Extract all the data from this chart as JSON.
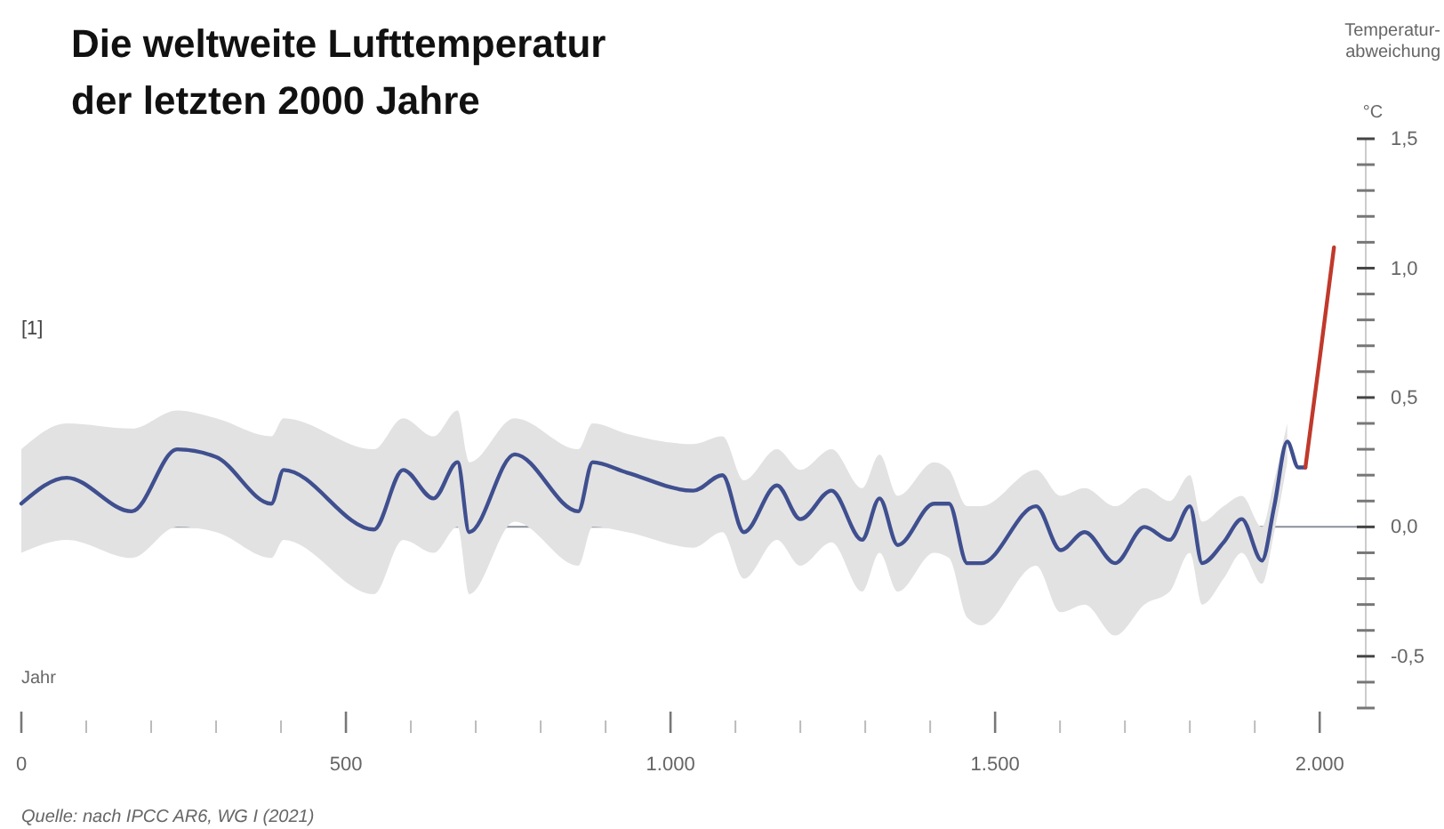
{
  "chart_data": {
    "type": "line",
    "title": "Die weltweite Lufttemperatur der letzten 2000 Jahre",
    "xlabel": "Jahr",
    "ylabel": "Temperatur-abweichung",
    "annotations": [
      "°C",
      "[1]",
      "Quelle: nach IPCC AR6, WG I (2021)"
    ],
    "xlim": [
      0,
      2060
    ],
    "xticks": [
      0,
      {
        "value": 100,
        "label": null
      },
      {
        "value": 200,
        "label": null
      },
      {
        "value": 300,
        "label": null
      },
      {
        "value": 400,
        "label": null
      },
      500,
      {
        "value": 600,
        "label": null
      },
      {
        "value": 700,
        "label": null
      },
      {
        "value": 800,
        "label": null
      },
      {
        "value": 900,
        "label": null
      },
      {
        "value": 1000,
        "label": "1.000"
      },
      {
        "value": 1100,
        "label": null
      },
      {
        "value": 1200,
        "label": null
      },
      {
        "value": 1300,
        "label": null
      },
      {
        "value": 1400,
        "label": null
      },
      {
        "value": 1500,
        "label": "1.500"
      },
      {
        "value": 1600,
        "label": null
      },
      {
        "value": 1700,
        "label": null
      },
      {
        "value": 1800,
        "label": null
      },
      {
        "value": 1900,
        "label": null
      },
      {
        "value": 2000,
        "label": "2.000"
      }
    ],
    "ylim": [
      -0.7,
      1.5
    ],
    "yticks": [
      {
        "value": 1.5,
        "label": "1,5"
      },
      {
        "value": 1.4,
        "label": null
      },
      {
        "value": 1.3,
        "label": null
      },
      {
        "value": 1.2,
        "label": null
      },
      {
        "value": 1.1,
        "label": null
      },
      {
        "value": 1.0,
        "label": "1,0"
      },
      {
        "value": 0.9,
        "label": null
      },
      {
        "value": 0.8,
        "label": null
      },
      {
        "value": 0.7,
        "label": null
      },
      {
        "value": 0.6,
        "label": null
      },
      {
        "value": 0.5,
        "label": "0,5"
      },
      {
        "value": 0.4,
        "label": null
      },
      {
        "value": 0.3,
        "label": null
      },
      {
        "value": 0.2,
        "label": null
      },
      {
        "value": 0.1,
        "label": null
      },
      {
        "value": 0,
        "label": "0,0"
      },
      {
        "value": -0.1,
        "label": null
      },
      {
        "value": -0.2,
        "label": null
      },
      {
        "value": -0.3,
        "label": null
      },
      {
        "value": -0.4,
        "label": null
      },
      {
        "value": -0.5,
        "label": "-0,5"
      },
      {
        "value": -0.6,
        "label": null
      },
      {
        "value": -0.7,
        "label": null
      }
    ],
    "ref_lines": [
      {
        "axis": "y",
        "value": 0,
        "color": "#8a9099"
      }
    ],
    "grid": false,
    "line_style": "solid",
    "series": [
      {
        "color": "#3f4f8f",
        "x": [
          0,
          70,
          170,
          240,
          300,
          385,
          404,
          543,
          588,
          635,
          672,
          690,
          760,
          858,
          880,
          933,
          1035,
          1080,
          1113,
          1164,
          1200,
          1248,
          1295,
          1322,
          1350,
          1406,
          1429,
          1457,
          1479,
          1563,
          1601,
          1638,
          1685,
          1730,
          1769,
          1800,
          1819,
          1852,
          1880,
          1911,
          1930,
          1950,
          1967,
          1978
        ],
        "values": [
          0.09,
          0.19,
          0.06,
          0.3,
          0.27,
          0.09,
          0.22,
          -0.01,
          0.22,
          0.11,
          0.25,
          -0.02,
          0.28,
          0.06,
          0.25,
          0.21,
          0.14,
          0.2,
          -0.02,
          0.16,
          0.03,
          0.14,
          -0.05,
          0.11,
          -0.07,
          0.09,
          0.09,
          -0.14,
          -0.14,
          0.08,
          -0.09,
          -0.02,
          -0.14,
          0.0,
          -0.05,
          0.08,
          -0.14,
          -0.06,
          0.03,
          -0.13,
          0.08,
          0.33,
          0.23,
          0.23
        ],
        "lower": [
          -0.1,
          -0.05,
          -0.12,
          0.0,
          -0.02,
          -0.12,
          -0.05,
          -0.26,
          -0.05,
          -0.1,
          0.0,
          -0.26,
          0.02,
          -0.15,
          0.0,
          -0.02,
          -0.08,
          -0.02,
          -0.2,
          -0.05,
          -0.15,
          -0.06,
          -0.25,
          -0.1,
          -0.25,
          -0.1,
          -0.12,
          -0.35,
          -0.38,
          -0.15,
          -0.33,
          -0.3,
          -0.42,
          -0.3,
          -0.25,
          -0.1,
          -0.3,
          -0.2,
          -0.1,
          -0.22,
          -0.02,
          0.25,
          null,
          null
        ],
        "upper": [
          0.3,
          0.4,
          0.38,
          0.45,
          0.42,
          0.35,
          0.42,
          0.3,
          0.42,
          0.35,
          0.45,
          0.25,
          0.42,
          0.3,
          0.4,
          0.36,
          0.32,
          0.35,
          0.18,
          0.3,
          0.22,
          0.3,
          0.15,
          0.28,
          0.12,
          0.25,
          0.22,
          0.08,
          0.08,
          0.22,
          0.12,
          0.15,
          0.08,
          0.15,
          0.1,
          0.2,
          0.02,
          0.08,
          0.12,
          0.0,
          0.18,
          0.4,
          null,
          null
        ]
      },
      {
        "color": "#c0392b",
        "x": [
          1978,
          2000,
          2022
        ],
        "values": [
          0.23,
          0.65,
          1.08
        ]
      }
    ]
  }
}
